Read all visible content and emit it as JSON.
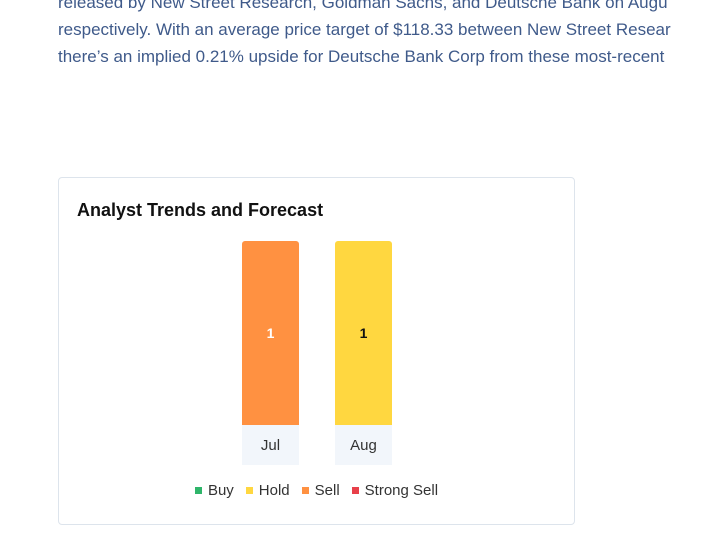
{
  "article": {
    "lines": [
      "released by New Street Research, Goldman Sachs, and Deutsche Bank on Augu",
      "respectively. With an average price target of $118.33 between New Street Resear",
      "there’s an implied 0.21% upside for Deutsche Bank Corp from these most-recent"
    ]
  },
  "chart_data": {
    "type": "bar",
    "title": "Analyst Trends and Forecast",
    "categories": [
      "Jul",
      "Aug"
    ],
    "series": [
      {
        "name": "Buy",
        "values": [
          0,
          0
        ]
      },
      {
        "name": "Hold",
        "values": [
          0,
          1
        ]
      },
      {
        "name": "Sell",
        "values": [
          1,
          0
        ]
      },
      {
        "name": "Strong Sell",
        "values": [
          0,
          0
        ]
      }
    ],
    "stacked": true,
    "data_labels": [
      "1",
      "1"
    ],
    "legend_position": "bottom",
    "colors": {
      "Buy": "#2fb56a",
      "Hold": "#ffd740",
      "Sell": "#ff9141",
      "Strong Sell": "#e8404a"
    }
  }
}
